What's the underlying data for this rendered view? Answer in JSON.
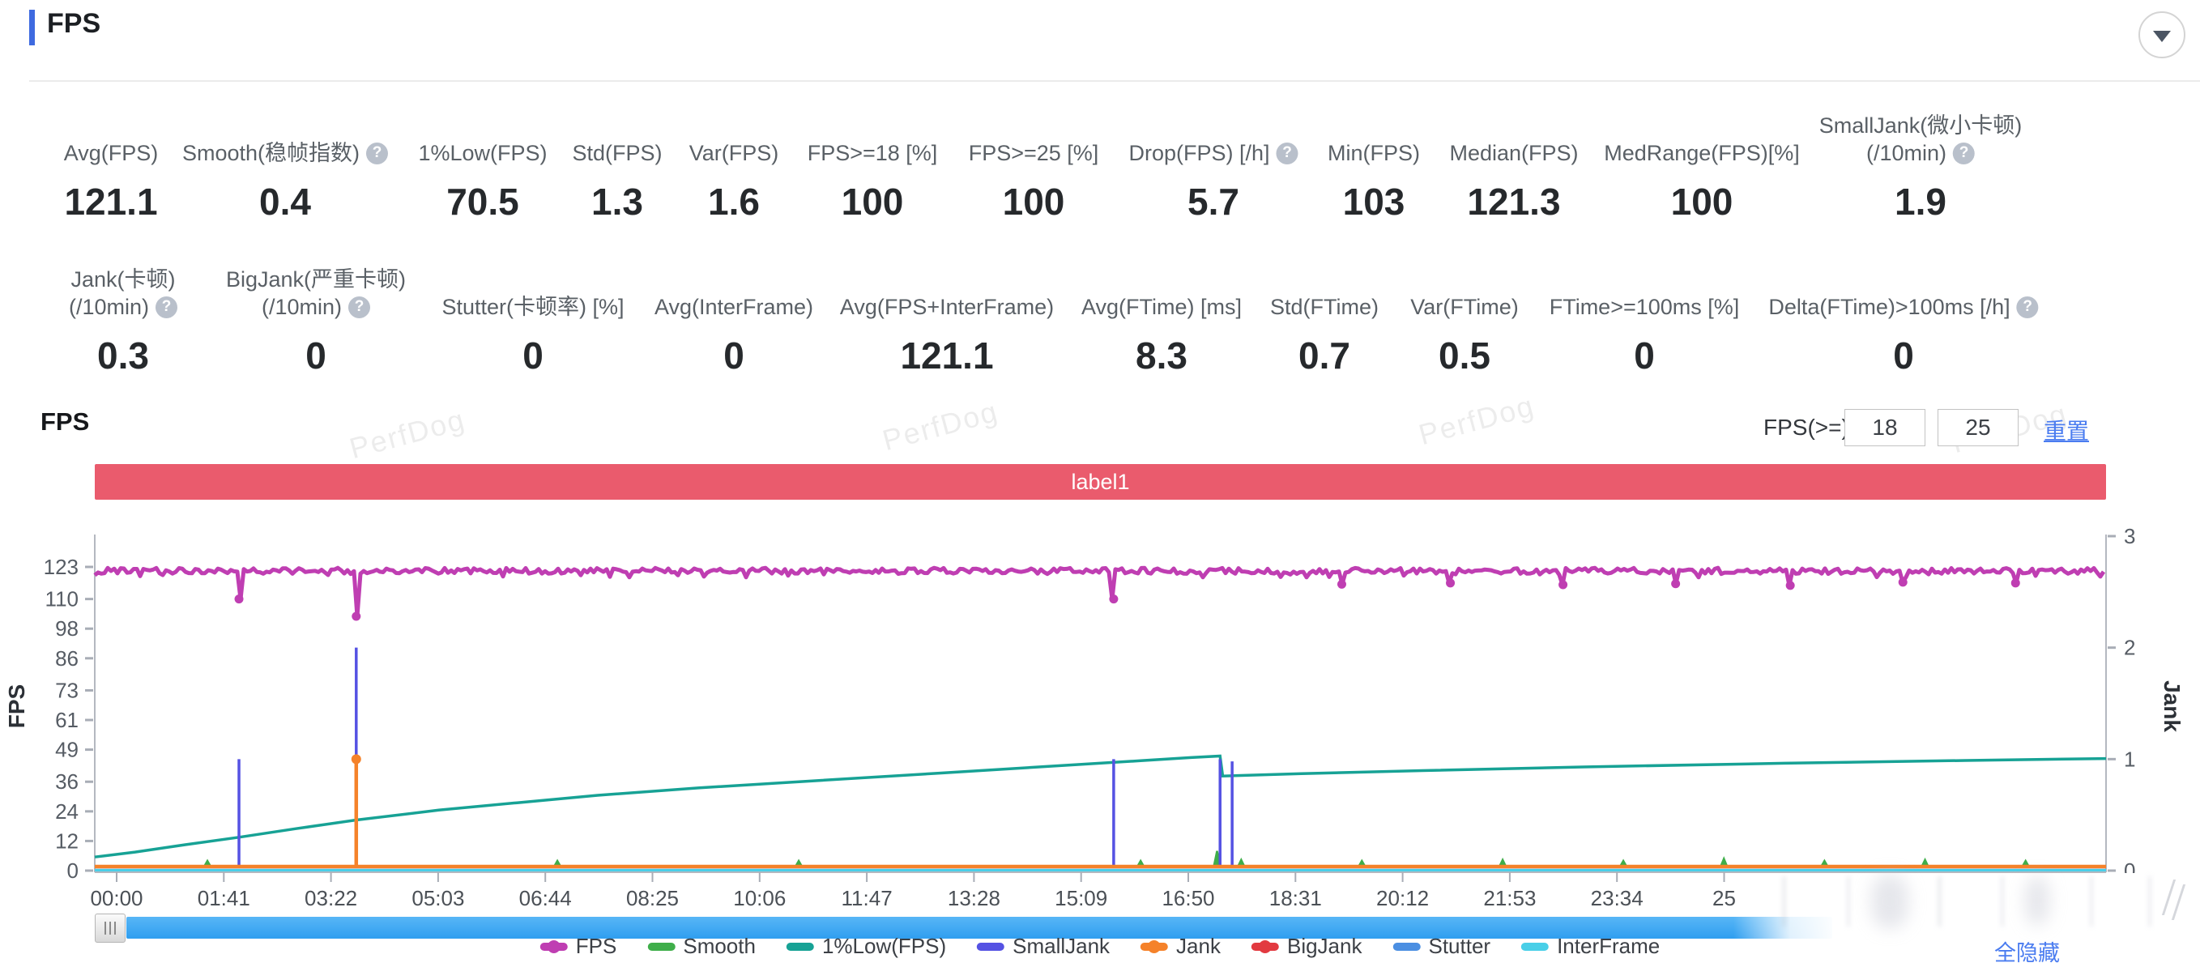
{
  "header": {
    "title": "FPS"
  },
  "stats_row1": [
    {
      "label": "Avg(FPS)",
      "value": "121.1"
    },
    {
      "label": "Smooth(稳帧指数)",
      "help": true,
      "value": "0.4"
    },
    {
      "label": "1%Low(FPS)",
      "value": "70.5"
    },
    {
      "label": "Std(FPS)",
      "value": "1.3"
    },
    {
      "label": "Var(FPS)",
      "value": "1.6"
    },
    {
      "label": "FPS>=18 [%]",
      "value": "100"
    },
    {
      "label": "FPS>=25 [%]",
      "value": "100"
    },
    {
      "label": "Drop(FPS) [/h]",
      "help": true,
      "value": "5.7"
    },
    {
      "label": "Min(FPS)",
      "value": "103"
    },
    {
      "label": "Median(FPS)",
      "value": "121.3"
    },
    {
      "label": "MedRange(FPS)[%]",
      "value": "100"
    },
    {
      "label": "SmallJank(微小卡顿)",
      "label2": "(/10min)",
      "help": true,
      "value": "1.9"
    }
  ],
  "stats_row2": [
    {
      "label": "Jank(卡顿)",
      "label2": "(/10min)",
      "help": true,
      "value": "0.3"
    },
    {
      "label": "BigJank(严重卡顿)",
      "label2": "(/10min)",
      "help": true,
      "value": "0"
    },
    {
      "label": "Stutter(卡顿率) [%]",
      "value": "0"
    },
    {
      "label": "Avg(InterFrame)",
      "value": "0"
    },
    {
      "label": "Avg(FPS+InterFrame)",
      "value": "121.1"
    },
    {
      "label": "Avg(FTime) [ms]",
      "value": "8.3"
    },
    {
      "label": "Std(FTime)",
      "value": "0.7"
    },
    {
      "label": "Var(FTime)",
      "value": "0.5"
    },
    {
      "label": "FTime>=100ms [%]",
      "value": "0"
    },
    {
      "label": "Delta(FTime)>100ms [/h]",
      "help": true,
      "value": "0"
    }
  ],
  "chart_header": {
    "title": "FPS",
    "filter_label": "FPS(>=)",
    "input1": "18",
    "input2": "25",
    "reset": "重置"
  },
  "watermark": "PerfDog",
  "hide_all": "全隐藏",
  "chart_data": {
    "type": "line",
    "banner": "label1",
    "x_axis": {
      "ticks": [
        "00:00",
        "01:41",
        "03:22",
        "05:03",
        "06:44",
        "08:25",
        "10:06",
        "11:47",
        "13:28",
        "15:09",
        "16:50",
        "18:31",
        "20:12",
        "21:53",
        "23:34",
        "25"
      ]
    },
    "y_left": {
      "label": "FPS",
      "ticks": [
        0,
        12,
        24,
        36,
        49,
        61,
        73,
        86,
        98,
        110,
        123
      ]
    },
    "y_right": {
      "label": "Jank",
      "ticks": [
        0,
        1,
        2,
        3
      ]
    },
    "series": [
      {
        "name": "FPS",
        "color": "#bf3eb2",
        "axis": "left",
        "type": "noisy-line",
        "base": 121.4,
        "noise": 1.2,
        "dips": [
          [
            0.0717,
            110
          ],
          [
            0.13,
            103
          ],
          [
            0.5066,
            110
          ],
          [
            0.62,
            116
          ],
          [
            0.674,
            116.5
          ],
          [
            0.73,
            115.8
          ],
          [
            0.786,
            116.2
          ],
          [
            0.843,
            115.5
          ],
          [
            0.899,
            116.8
          ],
          [
            0.955,
            116.5
          ]
        ]
      },
      {
        "name": "Smooth",
        "color": "#3fae4a",
        "axis": "right",
        "type": "blips",
        "blips": [
          [
            0.056,
            0.05
          ],
          [
            0.23,
            0.04
          ],
          [
            0.35,
            0.04
          ],
          [
            0.52,
            0.05
          ],
          [
            0.558,
            0.14
          ],
          [
            0.57,
            0.06
          ],
          [
            0.63,
            0.05
          ],
          [
            0.7,
            0.06
          ],
          [
            0.76,
            0.05
          ],
          [
            0.81,
            0.07
          ],
          [
            0.86,
            0.05
          ],
          [
            0.91,
            0.06
          ],
          [
            0.96,
            0.05
          ]
        ]
      },
      {
        "name": "1%Low(FPS)",
        "color": "#17a295",
        "axis": "left",
        "type": "line",
        "points": [
          [
            0,
            5.5
          ],
          [
            0.02,
            7.5
          ],
          [
            0.045,
            10.5
          ],
          [
            0.0717,
            13.5
          ],
          [
            0.1,
            17
          ],
          [
            0.13,
            20.5
          ],
          [
            0.171,
            24.5
          ],
          [
            0.21,
            27.5
          ],
          [
            0.25,
            30.5
          ],
          [
            0.3,
            33.5
          ],
          [
            0.36,
            36.5
          ],
          [
            0.42,
            39.5
          ],
          [
            0.48,
            42.5
          ],
          [
            0.52,
            44.5
          ],
          [
            0.545,
            45.8
          ],
          [
            0.5595,
            46.4
          ],
          [
            0.5608,
            38.3
          ],
          [
            0.6,
            39.3
          ],
          [
            0.66,
            40.5
          ],
          [
            0.74,
            42
          ],
          [
            0.84,
            43.5
          ],
          [
            0.93,
            44.6
          ],
          [
            1,
            45.4
          ]
        ]
      },
      {
        "name": "SmallJank",
        "color": "#5552e3",
        "axis": "right",
        "type": "spikes",
        "spikes": [
          [
            0.0717,
            1
          ],
          [
            0.13,
            2
          ],
          [
            0.5066,
            1
          ],
          [
            0.5595,
            1
          ],
          [
            0.5655,
            0.98
          ]
        ]
      },
      {
        "name": "Jank",
        "color": "#f5822a",
        "axis": "right",
        "type": "baseline-spikes",
        "value": 0,
        "spikes": [
          [
            0.13,
            1
          ]
        ]
      },
      {
        "name": "BigJank",
        "color": "#e23a40",
        "axis": "right",
        "type": "baseline",
        "value": 0
      },
      {
        "name": "Stutter",
        "color": "#4b8fe2",
        "axis": "right",
        "type": "baseline",
        "value": 0
      },
      {
        "name": "InterFrame",
        "color": "#49cfe8",
        "axis": "right",
        "type": "baseline",
        "value": 0
      }
    ]
  },
  "legend": [
    {
      "name": "FPS",
      "color": "#bf3eb2",
      "dot": true
    },
    {
      "name": "Smooth",
      "color": "#3fae4a",
      "dot": false
    },
    {
      "name": "1%Low(FPS)",
      "color": "#17a295",
      "dot": false
    },
    {
      "name": "SmallJank",
      "color": "#5552e3",
      "dot": false
    },
    {
      "name": "Jank",
      "color": "#f5822a",
      "dot": true
    },
    {
      "name": "BigJank",
      "color": "#e23a40",
      "dot": true
    },
    {
      "name": "Stutter",
      "color": "#4b8fe2",
      "dot": false
    },
    {
      "name": "InterFrame",
      "color": "#49cfe8",
      "dot": false
    }
  ]
}
